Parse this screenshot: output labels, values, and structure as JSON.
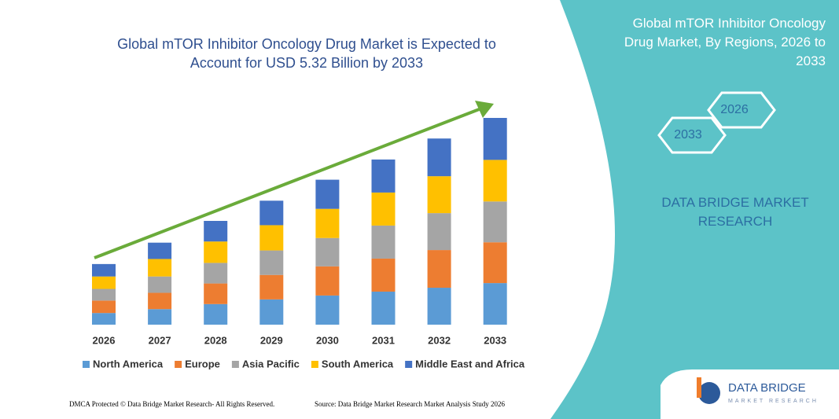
{
  "chart_data": {
    "type": "stacked_bar",
    "title": "Global mTOR Inhibitor Oncology Drug Market is Expected to Account for USD 5.32 Billion by 2033",
    "categories": [
      "2026",
      "2027",
      "2028",
      "2029",
      "2030",
      "2031",
      "2032",
      "2033"
    ],
    "series": [
      {
        "name": "North America",
        "color": "#5b9bd5",
        "values": [
          0.3,
          0.4,
          0.53,
          0.65,
          0.75,
          0.85,
          0.95,
          1.07
        ]
      },
      {
        "name": "Europe",
        "color": "#ed7d31",
        "values": [
          0.32,
          0.42,
          0.53,
          0.63,
          0.75,
          0.85,
          0.97,
          1.05
        ]
      },
      {
        "name": "Asia Pacific",
        "color": "#a5a5a5",
        "values": [
          0.3,
          0.42,
          0.53,
          0.63,
          0.73,
          0.85,
          0.95,
          1.05
        ]
      },
      {
        "name": "South America",
        "color": "#ffc000",
        "values": [
          0.32,
          0.45,
          0.55,
          0.65,
          0.75,
          0.85,
          0.95,
          1.07
        ]
      },
      {
        "name": "Middle East and Africa",
        "color": "#4472c4",
        "values": [
          0.32,
          0.42,
          0.53,
          0.63,
          0.75,
          0.85,
          0.97,
          1.08
        ]
      }
    ]
  },
  "panel": {
    "title": "Global mTOR Inhibitor Oncology Drug Market, By Regions, 2026 to 2033",
    "hexagons": [
      "2026",
      "2033"
    ],
    "brand": "DATA BRIDGE MARKET RESEARCH"
  },
  "logo": {
    "name": "DATA BRIDGE",
    "tagline": "MARKET RESEARCH"
  },
  "footer": {
    "left": "DMCA Protected © Data Bridge Market Research- All Rights Reserved.",
    "right": "Source: Data Bridge Market Research Market Analysis Study 2026"
  }
}
